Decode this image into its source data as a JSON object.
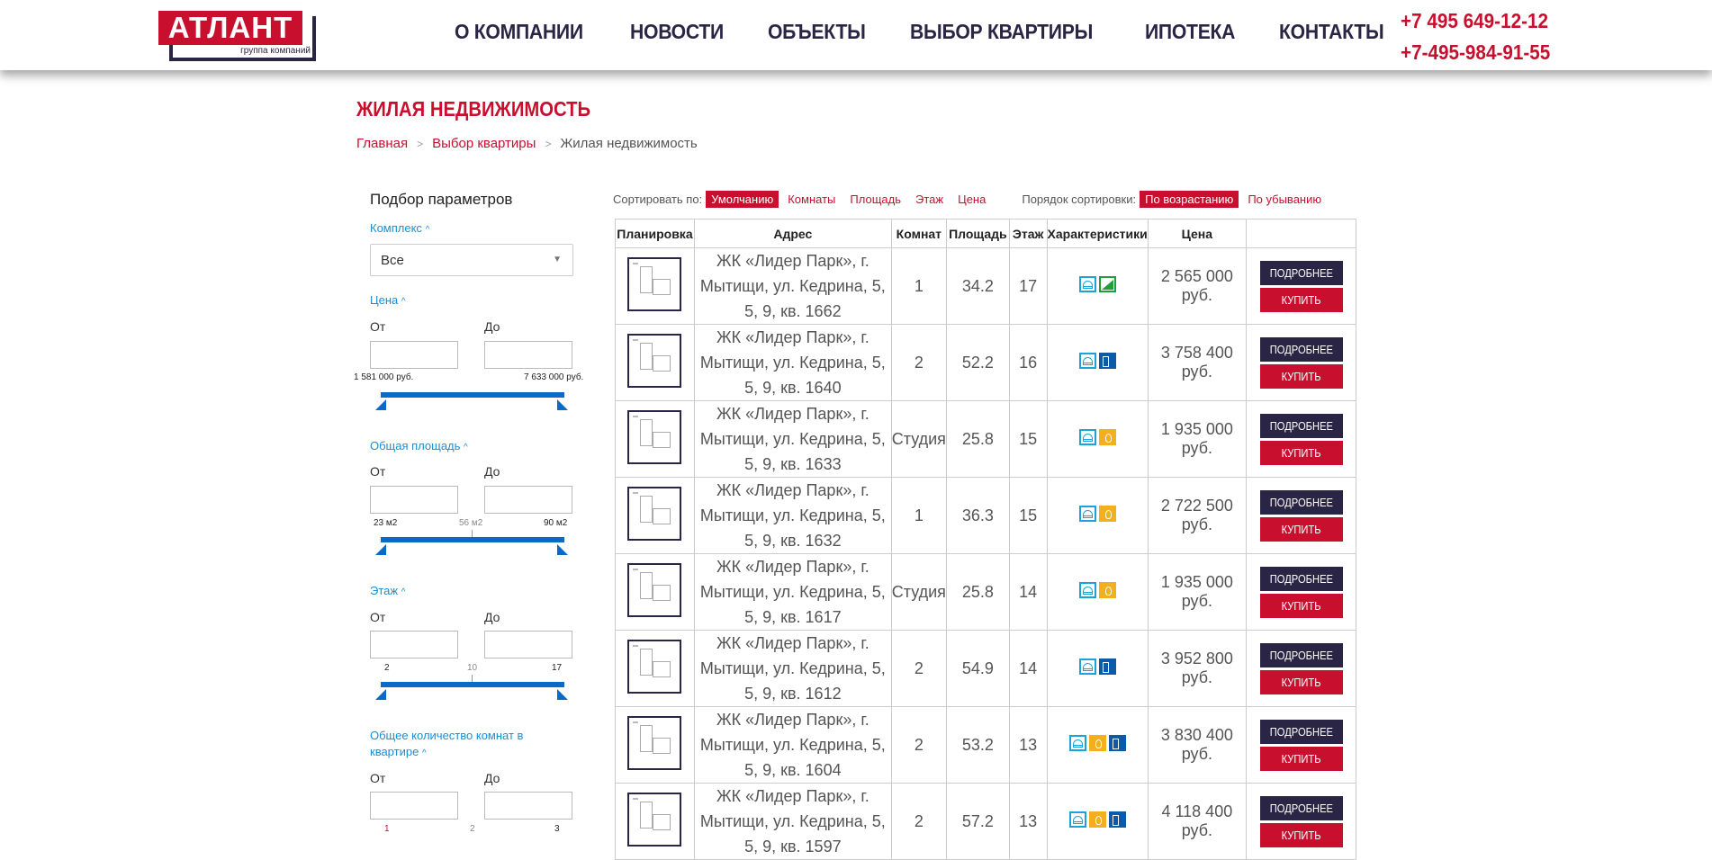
{
  "header": {
    "logo_text": "АТЛАНТ",
    "logo_sub": "группа компаний",
    "nav": [
      "О КОМПАНИИ",
      "НОВОСТИ",
      "ОБЪЕКТЫ",
      "ВЫБОР КВАРТИРЫ",
      "ИПОТЕКА",
      "КОНТАКТЫ"
    ],
    "phones": [
      "+7 495 649-12-12",
      "+7-495-984-91-55"
    ]
  },
  "page_title": "ЖИЛАЯ НЕДВИЖИМОСТЬ",
  "breadcrumb": [
    "Главная",
    "Выбор квартиры",
    "Жилая недвижимость"
  ],
  "filters": {
    "title": "Подбор параметров",
    "complex": {
      "label": "Комплекс",
      "value": "Все"
    },
    "price": {
      "label": "Цена",
      "from": "От",
      "to": "До",
      "min": "1 581 000 руб.",
      "max": "7 633 000 руб."
    },
    "area": {
      "label": "Общая площадь",
      "from": "От",
      "to": "До",
      "min": "23 м2",
      "mid": "56 м2",
      "max": "90 м2"
    },
    "floor": {
      "label": "Этаж",
      "from": "От",
      "to": "До",
      "min": "2",
      "mid": "10",
      "max": "17"
    },
    "rooms": {
      "label": "Общее количество комнат в квартире",
      "from": "От",
      "to": "До",
      "min": "1",
      "mid": "2",
      "max": "3"
    }
  },
  "sort": {
    "label": "Сортировать по:",
    "options": [
      "Умолчанию",
      "Комнаты",
      "Площадь",
      "Этаж",
      "Цена"
    ],
    "active": "Умолчанию",
    "order_label": "Порядок сортировки:",
    "order_options": [
      "По возрастанию",
      "По убыванию"
    ],
    "order_active": "По возрастанию"
  },
  "table": {
    "headers": [
      "Планировка",
      "Адрес",
      "Комнат",
      "Площадь",
      "Этаж",
      "Характеристики",
      "Цена",
      ""
    ],
    "more_label": "ПОДРОБНЕЕ",
    "buy_label": "КУПИТЬ",
    "rows": [
      {
        "address": "ЖК «Лидер Парк», г. Мытищи, ул. Кедрина, 5, 5, 9, кв. 1662",
        "rooms": "1",
        "area": "34.2",
        "floor": "17",
        "features": [
          "balcony-icon",
          "stairs-icon"
        ],
        "price": "2 565 000 руб."
      },
      {
        "address": "ЖК «Лидер Парк», г. Мытищи, ул. Кедрина, 5, 5, 9, кв. 1640",
        "rooms": "2",
        "area": "52.2",
        "floor": "16",
        "features": [
          "balcony-icon",
          "door-icon"
        ],
        "price": "3 758 400 руб."
      },
      {
        "address": "ЖК «Лидер Парк», г. Мытищи, ул. Кедрина, 5, 5, 9, кв. 1633",
        "rooms": "Студия",
        "area": "25.8",
        "floor": "15",
        "features": [
          "balcony-icon",
          "fire-icon"
        ],
        "price": "1 935 000 руб."
      },
      {
        "address": "ЖК «Лидер Парк», г. Мытищи, ул. Кедрина, 5, 5, 9, кв. 1632",
        "rooms": "1",
        "area": "36.3",
        "floor": "15",
        "features": [
          "balcony-icon",
          "fire-icon"
        ],
        "price": "2 722 500 руб."
      },
      {
        "address": "ЖК «Лидер Парк», г. Мытищи, ул. Кедрина, 5, 5, 9, кв. 1617",
        "rooms": "Студия",
        "area": "25.8",
        "floor": "14",
        "features": [
          "balcony-icon",
          "fire-icon"
        ],
        "price": "1 935 000 руб."
      },
      {
        "address": "ЖК «Лидер Парк», г. Мытищи, ул. Кедрина, 5, 5, 9, кв. 1612",
        "rooms": "2",
        "area": "54.9",
        "floor": "14",
        "features": [
          "balcony-icon",
          "door-icon"
        ],
        "price": "3 952 800 руб."
      },
      {
        "address": "ЖК «Лидер Парк», г. Мытищи, ул. Кедрина, 5, 5, 9, кв. 1604",
        "rooms": "2",
        "area": "53.2",
        "floor": "13",
        "features": [
          "balcony-icon",
          "fire-icon",
          "door-icon"
        ],
        "price": "3 830 400 руб."
      },
      {
        "address": "ЖК «Лидер Парк», г. Мытищи, ул. Кедрина, 5, 5, 9, кв. 1597",
        "rooms": "2",
        "area": "57.2",
        "floor": "13",
        "features": [
          "balcony-icon",
          "fire-icon",
          "door-icon"
        ],
        "price": "4 118 400 руб."
      }
    ]
  },
  "colors": {
    "brand_red": "#c8102e",
    "brand_navy": "#2b2545",
    "accent_blue": "#0a6ac7",
    "link_blue": "#1a8fd6"
  }
}
